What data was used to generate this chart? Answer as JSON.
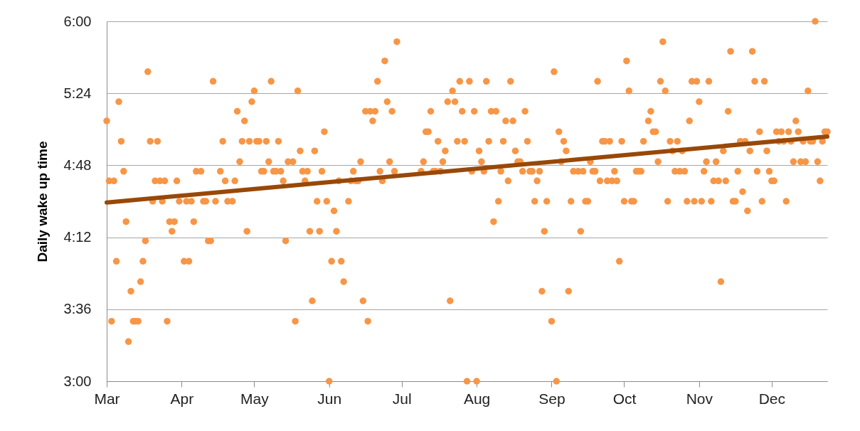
{
  "chart_data": {
    "type": "scatter",
    "ylabel": "Daily wake up time",
    "grid": "y",
    "xlim": [
      "--03-01",
      "--12-24"
    ],
    "xticks": [
      {
        "value": "--03-01",
        "label": "Mar"
      },
      {
        "value": "--04-01",
        "label": "Apr"
      },
      {
        "value": "--05-01",
        "label": "May"
      },
      {
        "value": "--06-01",
        "label": "Jun"
      },
      {
        "value": "--07-01",
        "label": "Jul"
      },
      {
        "value": "--08-01",
        "label": "Aug"
      },
      {
        "value": "--09-01",
        "label": "Sep"
      },
      {
        "value": "--10-01",
        "label": "Oct"
      },
      {
        "value": "--11-01",
        "label": "Nov"
      },
      {
        "value": "--12-01",
        "label": "Dec"
      }
    ],
    "ylim": [
      3,
      6
    ],
    "yticks": [
      {
        "value": 3,
        "label": "3:00"
      },
      {
        "value": 3.6,
        "label": "3:36"
      },
      {
        "value": 4.2,
        "label": "4:12"
      },
      {
        "value": 4.8,
        "label": "4:48"
      },
      {
        "value": 5.4,
        "label": "5:24"
      },
      {
        "value": 6,
        "label": "6:00"
      }
    ],
    "series": [
      {
        "marker": "circle",
        "color": "#f79646",
        "x": [
          "--03-01",
          "--03-02",
          "--03-03",
          "--03-04",
          "--03-05",
          "--03-06",
          "--03-07",
          "--03-08",
          "--03-09",
          "--03-10",
          "--03-11",
          "--03-12",
          "--03-13",
          "--03-14",
          "--03-15",
          "--03-16",
          "--03-17",
          "--03-18",
          "--03-19",
          "--03-20",
          "--03-21",
          "--03-22",
          "--03-23",
          "--03-24",
          "--03-25",
          "--03-26",
          "--03-27",
          "--03-28",
          "--03-29",
          "--03-30",
          "--03-31",
          "--04-02",
          "--04-03",
          "--04-04",
          "--04-05",
          "--04-06",
          "--04-07",
          "--04-09",
          "--04-10",
          "--04-11",
          "--04-12",
          "--04-13",
          "--04-14",
          "--04-15",
          "--04-17",
          "--04-18",
          "--04-19",
          "--04-20",
          "--04-22",
          "--04-23",
          "--04-24",
          "--04-25",
          "--04-26",
          "--04-27",
          "--04-28",
          "--04-29",
          "--04-30",
          "--05-01",
          "--05-02",
          "--05-03",
          "--05-04",
          "--05-05",
          "--05-06",
          "--05-07",
          "--05-08",
          "--05-09",
          "--05-10",
          "--05-11",
          "--05-12",
          "--05-13",
          "--05-14",
          "--05-15",
          "--05-17",
          "--05-18",
          "--05-19",
          "--05-20",
          "--05-21",
          "--05-22",
          "--05-23",
          "--05-24",
          "--05-25",
          "--05-26",
          "--05-27",
          "--05-28",
          "--05-29",
          "--05-30",
          "--05-31",
          "--06-01",
          "--06-02",
          "--06-03",
          "--06-04",
          "--06-05",
          "--06-06",
          "--06-07",
          "--06-09",
          "--06-10",
          "--06-11",
          "--06-12",
          "--06-13",
          "--06-14",
          "--06-15",
          "--06-16",
          "--06-17",
          "--06-18",
          "--06-19",
          "--06-20",
          "--06-21",
          "--06-22",
          "--06-23",
          "--06-24",
          "--06-25",
          "--06-26",
          "--06-27",
          "--06-28",
          "--06-29",
          "--07-09",
          "--07-10",
          "--07-11",
          "--07-12",
          "--07-13",
          "--07-14",
          "--07-15",
          "--07-16",
          "--07-17",
          "--07-18",
          "--07-19",
          "--07-20",
          "--07-21",
          "--07-22",
          "--07-23",
          "--07-24",
          "--07-25",
          "--07-26",
          "--07-27",
          "--07-28",
          "--07-29",
          "--07-30",
          "--07-31",
          "--08-01",
          "--08-02",
          "--08-03",
          "--08-04",
          "--08-05",
          "--08-06",
          "--08-07",
          "--08-08",
          "--08-09",
          "--08-10",
          "--08-11",
          "--08-12",
          "--08-13",
          "--08-14",
          "--08-15",
          "--08-16",
          "--08-17",
          "--08-18",
          "--08-19",
          "--08-20",
          "--08-21",
          "--08-22",
          "--08-23",
          "--08-24",
          "--08-25",
          "--08-26",
          "--08-27",
          "--08-28",
          "--08-29",
          "--08-30",
          "--09-01",
          "--09-02",
          "--09-03",
          "--09-04",
          "--09-05",
          "--09-06",
          "--09-07",
          "--09-08",
          "--09-09",
          "--09-10",
          "--09-12",
          "--09-13",
          "--09-14",
          "--09-15",
          "--09-16",
          "--09-17",
          "--09-18",
          "--09-19",
          "--09-20",
          "--09-21",
          "--09-22",
          "--09-23",
          "--09-24",
          "--09-25",
          "--09-26",
          "--09-27",
          "--09-28",
          "--09-29",
          "--09-30",
          "--10-01",
          "--10-02",
          "--10-03",
          "--10-04",
          "--10-05",
          "--10-06",
          "--10-07",
          "--10-08",
          "--10-09",
          "--10-11",
          "--10-12",
          "--10-13",
          "--10-14",
          "--10-15",
          "--10-16",
          "--10-17",
          "--10-18",
          "--10-19",
          "--10-20",
          "--10-21",
          "--10-22",
          "--10-23",
          "--10-24",
          "--10-25",
          "--10-26",
          "--10-27",
          "--10-28",
          "--10-29",
          "--10-30",
          "--10-31",
          "--11-01",
          "--11-02",
          "--11-03",
          "--11-04",
          "--11-05",
          "--11-06",
          "--11-07",
          "--11-08",
          "--11-09",
          "--11-10",
          "--11-11",
          "--11-12",
          "--11-13",
          "--11-14",
          "--11-15",
          "--11-16",
          "--11-17",
          "--11-18",
          "--11-19",
          "--11-20",
          "--11-21",
          "--11-22",
          "--11-23",
          "--11-24",
          "--11-25",
          "--11-26",
          "--11-27",
          "--11-28",
          "--11-29",
          "--11-30",
          "--12-01",
          "--12-02",
          "--12-03",
          "--12-04",
          "--12-05",
          "--12-06",
          "--12-07",
          "--12-08",
          "--12-09",
          "--12-10",
          "--12-11",
          "--12-12",
          "--12-13",
          "--12-14",
          "--12-15",
          "--12-16",
          "--12-17",
          "--12-18",
          "--12-19",
          "--12-20",
          "--12-21",
          "--12-22",
          "--12-23",
          "--12-24"
        ],
        "values": [
          5.17,
          4.67,
          3.5,
          4.67,
          4,
          5.33,
          5,
          4.75,
          4.33,
          3.33,
          3.75,
          3.5,
          3.5,
          3.5,
          3.83,
          4,
          4.17,
          5.58,
          5,
          4.5,
          4.67,
          5,
          4.67,
          4.5,
          4.67,
          3.5,
          4.33,
          4.25,
          4.33,
          4.67,
          4.5,
          4,
          4.5,
          4,
          4.5,
          4.33,
          4.75,
          4.75,
          4.5,
          4.5,
          4.17,
          4.17,
          5.5,
          4.5,
          4.75,
          5,
          4.67,
          4.5,
          4.5,
          4.67,
          5.25,
          4.83,
          5,
          5.17,
          4.25,
          5,
          5.33,
          5.42,
          5,
          5,
          4.75,
          4.75,
          5,
          4.83,
          5.5,
          4.75,
          4.75,
          5,
          4.75,
          4.67,
          4.17,
          4.83,
          4.83,
          3.5,
          5.42,
          4.92,
          4.75,
          4.67,
          4.75,
          4.25,
          3.67,
          4.92,
          4.5,
          4.25,
          4.75,
          5.08,
          4.5,
          3,
          4,
          4.42,
          4.25,
          4.67,
          4,
          3.83,
          4.5,
          4.67,
          4.75,
          4.67,
          4.67,
          4.83,
          3.67,
          5.25,
          3.5,
          5.25,
          5.17,
          5.25,
          5.5,
          4.75,
          4.67,
          5.67,
          5.33,
          4.83,
          5.25,
          4.75,
          5.83,
          4.75,
          4.83,
          5.08,
          5.08,
          5.25,
          4.75,
          4.75,
          5,
          4.75,
          4.83,
          4.92,
          5.33,
          3.67,
          5.42,
          5.33,
          5,
          5.5,
          5.25,
          5,
          3,
          5.5,
          4.75,
          5.25,
          3,
          4.92,
          4.83,
          4.75,
          5.5,
          5,
          5.25,
          4.33,
          5.25,
          4.5,
          4.75,
          5,
          5.17,
          4.67,
          5.5,
          5.17,
          4.92,
          4.83,
          4.83,
          4.75,
          5.25,
          5,
          4.75,
          4.75,
          4.5,
          4.67,
          4.75,
          3.75,
          4.25,
          4.5,
          3.5,
          5.58,
          3,
          5.08,
          4.83,
          5,
          4.92,
          3.75,
          4.5,
          4.75,
          4.75,
          4.25,
          4.75,
          4.5,
          4.5,
          4.83,
          4.75,
          4.75,
          5.5,
          4.67,
          5,
          5,
          4.67,
          5,
          4.67,
          4.75,
          4.67,
          4,
          5,
          4.5,
          5.67,
          5.42,
          4.5,
          4.5,
          4.75,
          4.75,
          4.75,
          5,
          5.17,
          5.25,
          5.08,
          5.08,
          4.83,
          5.5,
          5.83,
          5.42,
          4.5,
          5,
          4.92,
          4.75,
          5,
          4.75,
          4.92,
          4.75,
          4.5,
          5.17,
          5.5,
          4.5,
          5.5,
          5.33,
          4.5,
          4.75,
          4.83,
          5.5,
          4.5,
          4.67,
          4.83,
          4.67,
          3.83,
          4.92,
          4.67,
          5.25,
          5.75,
          4.5,
          4.5,
          4.75,
          5,
          4.58,
          5,
          4.42,
          4.92,
          5.75,
          5.5,
          4.75,
          5.08,
          4.5,
          5.5,
          4.92,
          4.75,
          4.67,
          4.67,
          5.08,
          5,
          5.08,
          5,
          4.5,
          5.08,
          5,
          4.83,
          5.17,
          5.08,
          4.83,
          5,
          4.83,
          5.42,
          5,
          5,
          6,
          4.83,
          4.67,
          5,
          5.08,
          5.08
        ]
      },
      {
        "type": "line",
        "color": "#984807",
        "x": [
          "--03-01",
          "--12-24"
        ],
        "values": [
          4.49,
          5.04
        ]
      }
    ]
  }
}
